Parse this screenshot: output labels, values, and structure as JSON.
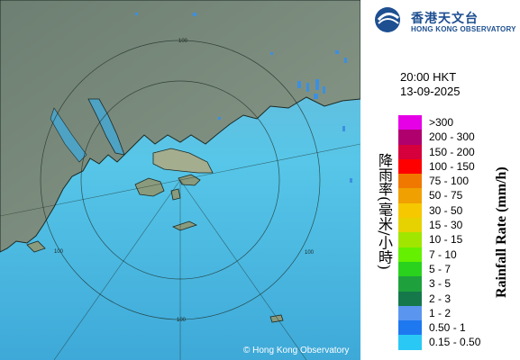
{
  "map": {
    "copyright": "© Hong Kong Observatory",
    "range_labels": [
      "100",
      "100",
      "100",
      "100"
    ]
  },
  "header": {
    "logo_cn": "香港天文台",
    "logo_en": "HONG KONG OBSERVATORY"
  },
  "timestamp": {
    "time": "20:00 HKT",
    "date": "13-09-2025"
  },
  "legend": {
    "unit_cn": "降雨率(毫米/小時)",
    "unit_en": "Rainfall Rate (mm/h)",
    "items": [
      {
        "label": ">300",
        "color": "#e600e6"
      },
      {
        "label": "200 - 300",
        "color": "#b0006e"
      },
      {
        "label": "150 - 200",
        "color": "#d6003c"
      },
      {
        "label": "100 - 150",
        "color": "#ff0000"
      },
      {
        "label": "75 - 100",
        "color": "#f07800"
      },
      {
        "label": "50 - 75",
        "color": "#f0a000"
      },
      {
        "label": "30 - 50",
        "color": "#f6c800"
      },
      {
        "label": "15 - 30",
        "color": "#e6d200"
      },
      {
        "label": "10 - 15",
        "color": "#a0e600"
      },
      {
        "label": "7 - 10",
        "color": "#64f000"
      },
      {
        "label": "5 - 7",
        "color": "#2ad21e"
      },
      {
        "label": "3 - 5",
        "color": "#1ea03c"
      },
      {
        "label": "2 - 3",
        "color": "#15784b"
      },
      {
        "label": "1 - 2",
        "color": "#5a96f0"
      },
      {
        "label": "0.50 - 1",
        "color": "#1e78f0"
      },
      {
        "label": "0.15 - 0.50",
        "color": "#2ac8f5"
      }
    ]
  }
}
